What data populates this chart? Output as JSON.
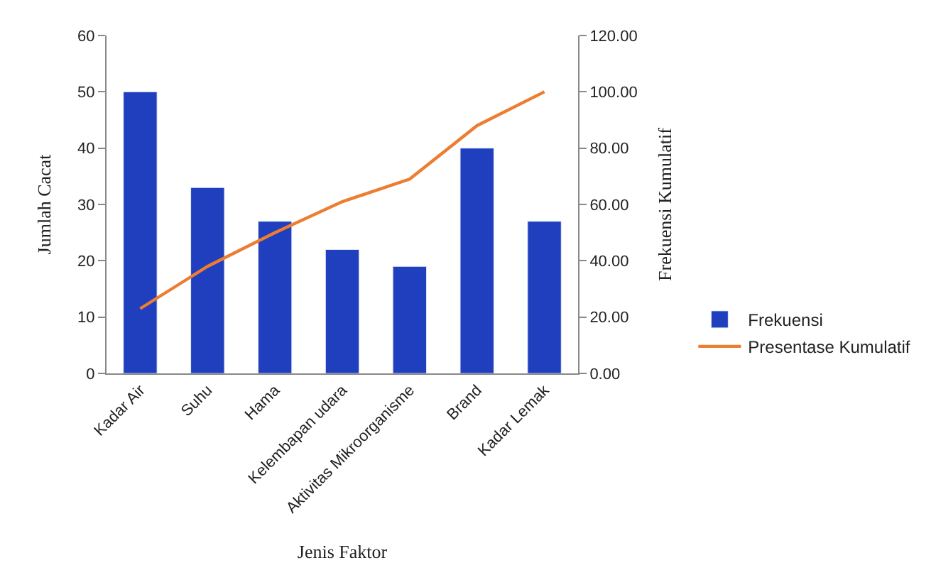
{
  "chart_data": {
    "type": "bar",
    "categories": [
      "Kadar Air",
      "Suhu",
      "Hama",
      "Kelembapan udara",
      "Aktivitas Mikroorganisme",
      "Brand",
      "Kadar Lemak"
    ],
    "series": [
      {
        "name": "Frekuensi",
        "color": "#1f3fbf",
        "values": [
          50,
          33,
          27,
          22,
          19,
          40,
          27
        ]
      },
      {
        "name": "Presentase Kumulatif",
        "type": "line",
        "axis": "y2",
        "color": "#ed7d31",
        "marker": "none",
        "values": [
          23,
          38,
          50,
          61,
          69,
          88,
          100
        ]
      }
    ],
    "xlabel": "Jenis Faktor",
    "ylabel": "Jumlah Cacat",
    "y2label": "Frekuensi Kumulatif",
    "ylim": [
      0,
      60
    ],
    "yticks": [
      0,
      10,
      20,
      30,
      40,
      50,
      60
    ],
    "y2lim": [
      0,
      120
    ],
    "y2ticks": [
      {
        "value": 0,
        "label": "0.00"
      },
      {
        "value": 20,
        "label": "20.00"
      },
      {
        "value": 40,
        "label": "40.00"
      },
      {
        "value": 60,
        "label": "60.00"
      },
      {
        "value": 80,
        "label": "80.00"
      },
      {
        "value": 100,
        "label": "100.00"
      },
      {
        "value": 120,
        "label": "120.00"
      }
    ],
    "legend": "right"
  }
}
